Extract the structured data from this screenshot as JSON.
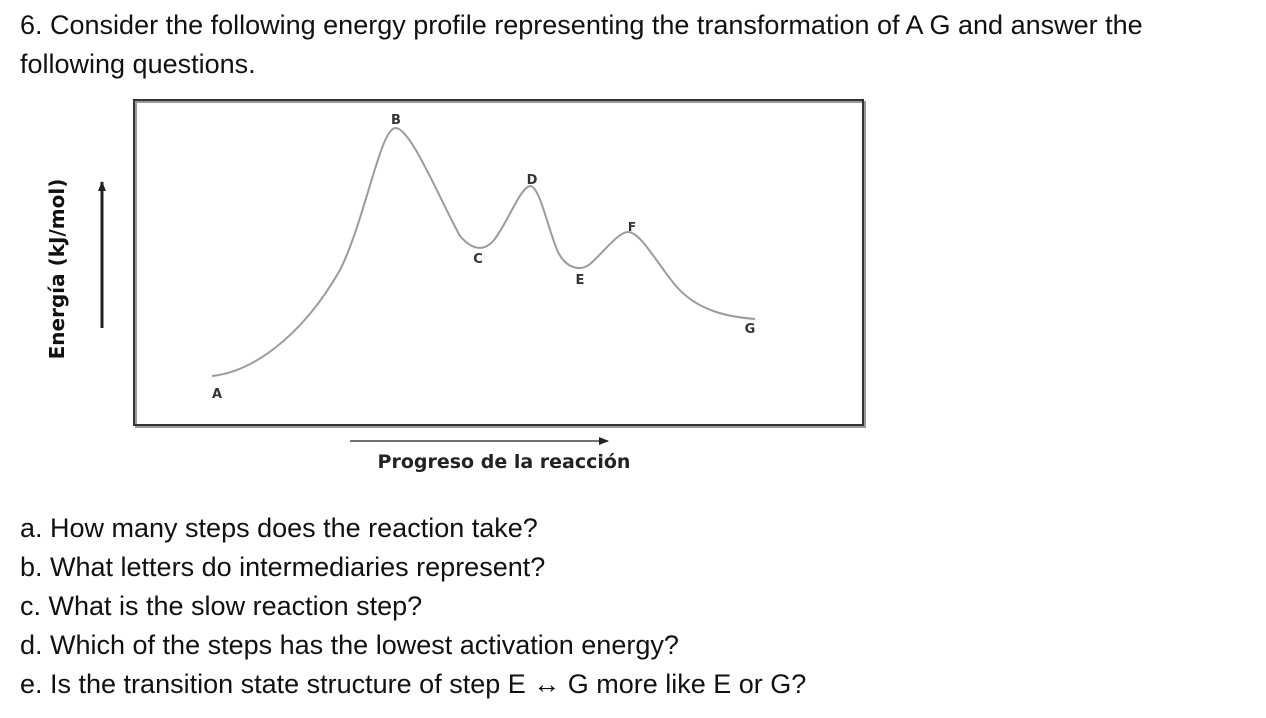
{
  "question": {
    "line1": "6. Consider the following energy profile representing the transformation of A G and answer the",
    "line2": "following questions."
  },
  "diagram": {
    "y_axis_label": "Energía (kJ/mol)",
    "x_axis_label": "Progreso de la reacción",
    "points": [
      "A",
      "B",
      "C",
      "D",
      "E",
      "F",
      "G"
    ]
  },
  "sub_questions": [
    "a. How many steps does the reaction take?",
    "b. What letters do intermediaries represent?",
    "c. What is the slow reaction step?",
    "d. Which of the steps has the lowest activation energy?",
    "e. Is the transition state structure of step E ↔ G more like E or G?"
  ]
}
